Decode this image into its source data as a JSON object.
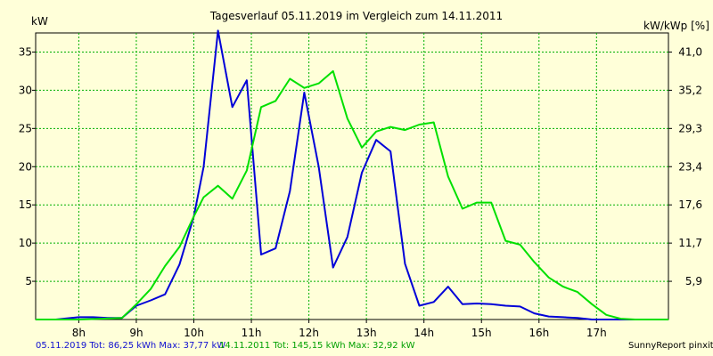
{
  "chart_data": {
    "type": "line",
    "title": "Tagesverlauf 05.11.2019 im Vergleich zum 14.11.2011",
    "ylabel_left": "kW",
    "ylabel_right": "kW/kWp [%]",
    "x_ticks": [
      "8h",
      "9h",
      "10h",
      "11h",
      "12h",
      "13h",
      "14h",
      "15h",
      "16h",
      "17h"
    ],
    "y_ticks_left": [
      "5",
      "10",
      "15",
      "20",
      "25",
      "30",
      "35"
    ],
    "y_ticks_right": [
      "5,9",
      "11,7",
      "17,6",
      "23,4",
      "29,3",
      "35,2",
      "41,0"
    ],
    "xlim": [
      7.25,
      18.25
    ],
    "ylim": [
      0,
      37.5
    ],
    "grid": true,
    "series": [
      {
        "name": "05.11.2019",
        "color": "#0000d8",
        "x": [
          7.25,
          7.6,
          8.0,
          8.25,
          8.5,
          8.75,
          9.0,
          9.25,
          9.5,
          9.75,
          10.0,
          10.17,
          10.42,
          10.67,
          10.92,
          11.17,
          11.42,
          11.67,
          11.92,
          12.17,
          12.42,
          12.67,
          12.92,
          13.17,
          13.42,
          13.67,
          13.92,
          14.17,
          14.42,
          14.67,
          14.92,
          15.17,
          15.42,
          15.67,
          15.92,
          16.17,
          16.42,
          16.67,
          16.92,
          17.17,
          17.42,
          17.67,
          18.25
        ],
        "y": [
          0,
          0,
          0.3,
          0.3,
          0.2,
          0.2,
          1.8,
          2.5,
          3.3,
          7.2,
          13.5,
          20.0,
          37.8,
          27.8,
          31.3,
          8.5,
          9.3,
          16.8,
          29.7,
          20.0,
          6.8,
          10.8,
          19.2,
          23.5,
          22.0,
          7.3,
          1.8,
          2.3,
          4.3,
          2.0,
          2.1,
          2.0,
          1.8,
          1.7,
          0.8,
          0.4,
          0.3,
          0.2,
          0,
          0,
          0,
          0,
          0
        ]
      },
      {
        "name": "14.11.2011",
        "color": "#00e000",
        "x": [
          7.25,
          8.0,
          8.75,
          9.0,
          9.25,
          9.5,
          9.75,
          10.0,
          10.17,
          10.42,
          10.67,
          10.92,
          11.17,
          11.42,
          11.67,
          11.92,
          12.17,
          12.42,
          12.67,
          12.92,
          13.17,
          13.42,
          13.67,
          13.92,
          14.17,
          14.42,
          14.67,
          14.92,
          15.17,
          15.42,
          15.67,
          15.92,
          16.17,
          16.42,
          16.67,
          16.92,
          17.17,
          17.42,
          17.67,
          18.25
        ],
        "y": [
          0,
          0,
          0.2,
          2.0,
          4.0,
          7.0,
          9.5,
          13.5,
          16.0,
          17.5,
          15.8,
          19.5,
          27.8,
          28.6,
          31.5,
          30.3,
          30.9,
          32.5,
          26.3,
          22.5,
          24.6,
          25.2,
          24.8,
          25.5,
          25.8,
          18.7,
          14.5,
          15.3,
          15.3,
          10.3,
          9.8,
          7.5,
          5.5,
          4.3,
          3.6,
          2.0,
          0.6,
          0.1,
          0,
          0
        ]
      }
    ]
  },
  "footer": {
    "blue_text": "05.11.2019 Tot: 86,25 kWh Max: 37,77 kW",
    "green_text": "14.11.2011 Tot: 145,15 kWh Max: 32,92 kW",
    "credit": "SunnyReport pinxit"
  }
}
